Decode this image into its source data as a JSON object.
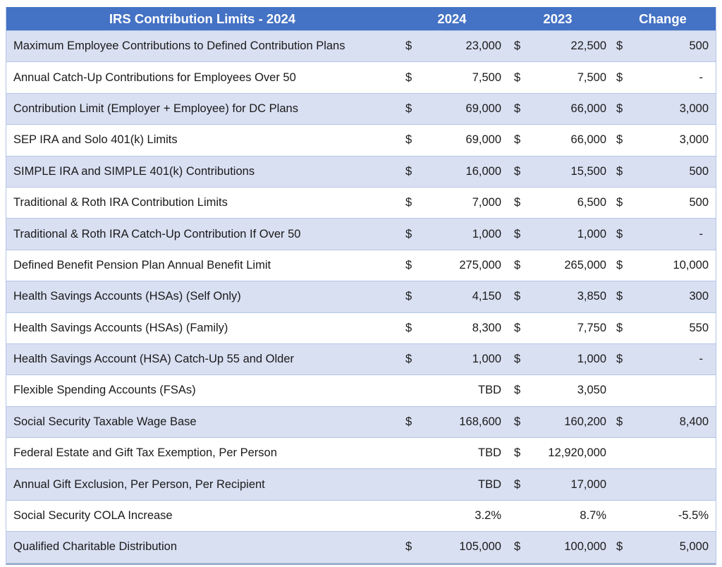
{
  "header": {
    "title": "IRS Contribution Limits - 2024",
    "columns": [
      "2024",
      "2023",
      "Change"
    ]
  },
  "colors": {
    "header_bg": "#4472C4",
    "header_text": "#FFFFFF",
    "stripe_bg": "#D9E0F2",
    "border": "#B4C6E7",
    "text": "#1A1A1A"
  },
  "rows": [
    {
      "label": "Maximum Employee Contributions to Defined Contribution Plans",
      "y2024": {
        "symbol": "$",
        "value": "23,000"
      },
      "y2023": {
        "symbol": "$",
        "value": "22,500"
      },
      "change": {
        "symbol": "$",
        "value": "500"
      }
    },
    {
      "label": "Annual Catch-Up Contributions for Employees Over 50",
      "y2024": {
        "symbol": "$",
        "value": "7,500"
      },
      "y2023": {
        "symbol": "$",
        "value": "7,500"
      },
      "change": {
        "symbol": "$",
        "value": "-"
      }
    },
    {
      "label": "Contribution Limit (Employer + Employee) for DC Plans",
      "y2024": {
        "symbol": "$",
        "value": "69,000"
      },
      "y2023": {
        "symbol": "$",
        "value": "66,000"
      },
      "change": {
        "symbol": "$",
        "value": "3,000"
      }
    },
    {
      "label": "SEP IRA and Solo 401(k) Limits",
      "y2024": {
        "symbol": "$",
        "value": "69,000"
      },
      "y2023": {
        "symbol": "$",
        "value": "66,000"
      },
      "change": {
        "symbol": "$",
        "value": "3,000"
      }
    },
    {
      "label": "SIMPLE IRA and SIMPLE 401(k) Contributions",
      "y2024": {
        "symbol": "$",
        "value": "16,000"
      },
      "y2023": {
        "symbol": "$",
        "value": "15,500"
      },
      "change": {
        "symbol": "$",
        "value": "500"
      }
    },
    {
      "label": "Traditional & Roth IRA Contribution Limits",
      "y2024": {
        "symbol": "$",
        "value": "7,000"
      },
      "y2023": {
        "symbol": "$",
        "value": "6,500"
      },
      "change": {
        "symbol": "$",
        "value": "500"
      }
    },
    {
      "label": "Traditional & Roth IRA Catch-Up Contribution If Over 50",
      "y2024": {
        "symbol": "$",
        "value": "1,000"
      },
      "y2023": {
        "symbol": "$",
        "value": "1,000"
      },
      "change": {
        "symbol": "$",
        "value": "-"
      }
    },
    {
      "label": "Defined Benefit Pension Plan Annual Benefit Limit",
      "y2024": {
        "symbol": "$",
        "value": "275,000"
      },
      "y2023": {
        "symbol": "$",
        "value": "265,000"
      },
      "change": {
        "symbol": "$",
        "value": "10,000"
      }
    },
    {
      "label": "Health Savings Accounts (HSAs) (Self Only)",
      "y2024": {
        "symbol": "$",
        "value": "4,150"
      },
      "y2023": {
        "symbol": "$",
        "value": "3,850"
      },
      "change": {
        "symbol": "$",
        "value": "300"
      }
    },
    {
      "label": "Health Savings Accounts (HSAs) (Family)",
      "y2024": {
        "symbol": "$",
        "value": "8,300"
      },
      "y2023": {
        "symbol": "$",
        "value": "7,750"
      },
      "change": {
        "symbol": "$",
        "value": "550"
      }
    },
    {
      "label": "Health Savings Account (HSA) Catch-Up 55 and Older",
      "y2024": {
        "symbol": "$",
        "value": "1,000"
      },
      "y2023": {
        "symbol": "$",
        "value": "1,000"
      },
      "change": {
        "symbol": "$",
        "value": "-"
      }
    },
    {
      "label": "Flexible Spending Accounts (FSAs)",
      "y2024": {
        "symbol": "",
        "value": "TBD"
      },
      "y2023": {
        "symbol": "$",
        "value": "3,050"
      },
      "change": {
        "symbol": "",
        "value": ""
      }
    },
    {
      "label": "Social Security Taxable Wage Base",
      "y2024": {
        "symbol": "$",
        "value": "168,600"
      },
      "y2023": {
        "symbol": "$",
        "value": "160,200"
      },
      "change": {
        "symbol": "$",
        "value": "8,400"
      }
    },
    {
      "label": "Federal Estate and Gift Tax Exemption, Per Person",
      "y2024": {
        "symbol": "",
        "value": "TBD"
      },
      "y2023": {
        "symbol": "$",
        "value": "12,920,000"
      },
      "change": {
        "symbol": "",
        "value": ""
      }
    },
    {
      "label": "Annual Gift Exclusion, Per Person, Per Recipient",
      "y2024": {
        "symbol": "",
        "value": "TBD"
      },
      "y2023": {
        "symbol": "$",
        "value": "17,000"
      },
      "change": {
        "symbol": "",
        "value": ""
      }
    },
    {
      "label": "Social Security COLA Increase",
      "y2024": {
        "symbol": "",
        "value": "3.2%"
      },
      "y2023": {
        "symbol": "",
        "value": "8.7%"
      },
      "change": {
        "symbol": "",
        "value": "-5.5%"
      }
    },
    {
      "label": "Qualified Charitable Distribution",
      "y2024": {
        "symbol": "$",
        "value": "105,000"
      },
      "y2023": {
        "symbol": "$",
        "value": "100,000"
      },
      "change": {
        "symbol": "$",
        "value": "5,000"
      }
    }
  ]
}
